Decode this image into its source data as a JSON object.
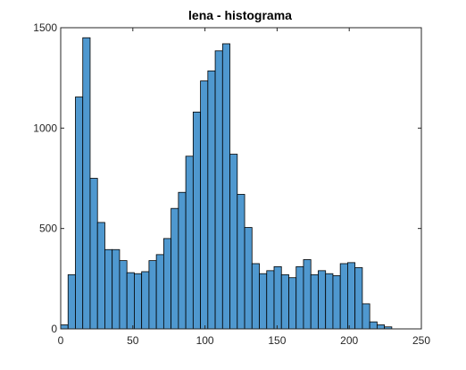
{
  "chart_data": {
    "type": "bar",
    "title": "lena - histograma",
    "xlabel": "",
    "ylabel": "",
    "xlim": [
      0,
      250
    ],
    "ylim": [
      0,
      1500
    ],
    "xticks": [
      0,
      50,
      100,
      150,
      200,
      250
    ],
    "yticks": [
      0,
      500,
      1000,
      1500
    ],
    "bin_width": 5.1,
    "bins_start": 0,
    "values": [
      20,
      270,
      1155,
      1450,
      750,
      530,
      395,
      395,
      340,
      280,
      275,
      285,
      340,
      370,
      450,
      600,
      680,
      860,
      1080,
      1235,
      1285,
      1385,
      1420,
      870,
      670,
      505,
      325,
      275,
      290,
      310,
      270,
      255,
      310,
      345,
      270,
      290,
      275,
      265,
      325,
      330,
      305,
      125,
      35,
      20,
      10,
      0,
      0
    ],
    "bar_color": "#4f98cf",
    "edge_color": "#000000",
    "grid": false,
    "legend": "none"
  }
}
